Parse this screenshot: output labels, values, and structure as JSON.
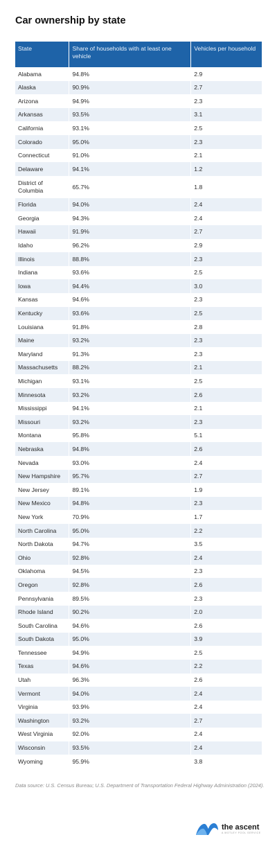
{
  "title": "Car ownership by state",
  "columns": [
    "State",
    "Share of households with at least one vehicle",
    "Vehicles per household"
  ],
  "rows": [
    [
      "Alabama",
      "94.8%",
      "2.9"
    ],
    [
      "Alaska",
      "90.9%",
      "2.7"
    ],
    [
      "Arizona",
      "94.9%",
      "2.3"
    ],
    [
      "Arkansas",
      "93.5%",
      "3.1"
    ],
    [
      "California",
      "93.1%",
      "2.5"
    ],
    [
      "Colorado",
      "95.0%",
      "2.3"
    ],
    [
      "Connecticut",
      "91.0%",
      "2.1"
    ],
    [
      "Delaware",
      "94.1%",
      "1.2"
    ],
    [
      "District of Columbia",
      "65.7%",
      "1.8"
    ],
    [
      "Florida",
      "94.0%",
      "2.4"
    ],
    [
      "Georgia",
      "94.3%",
      "2.4"
    ],
    [
      "Hawaii",
      "91.9%",
      "2.7"
    ],
    [
      "Idaho",
      "96.2%",
      "2.9"
    ],
    [
      "Illinois",
      "88.8%",
      "2.3"
    ],
    [
      "Indiana",
      "93.6%",
      "2.5"
    ],
    [
      "Iowa",
      "94.4%",
      "3.0"
    ],
    [
      "Kansas",
      "94.6%",
      "2.3"
    ],
    [
      "Kentucky",
      "93.6%",
      "2.5"
    ],
    [
      "Louisiana",
      "91.8%",
      "2.8"
    ],
    [
      "Maine",
      "93.2%",
      "2.3"
    ],
    [
      "Maryland",
      "91.3%",
      "2.3"
    ],
    [
      "Massachusetts",
      "88.2%",
      "2.1"
    ],
    [
      "Michigan",
      "93.1%",
      "2.5"
    ],
    [
      "Minnesota",
      "93.2%",
      "2.6"
    ],
    [
      "Mississippi",
      "94.1%",
      "2.1"
    ],
    [
      "Missouri",
      "93.2%",
      "2.3"
    ],
    [
      "Montana",
      "95.8%",
      "5.1"
    ],
    [
      "Nebraska",
      "94.8%",
      "2.6"
    ],
    [
      "Nevada",
      "93.0%",
      "2.4"
    ],
    [
      "New Hampshire",
      "95.7%",
      "2.7"
    ],
    [
      "New Jersey",
      "89.1%",
      "1.9"
    ],
    [
      "New Mexico",
      "94.8%",
      "2.3"
    ],
    [
      "New York",
      "70.9%",
      "1.7"
    ],
    [
      "North Carolina",
      "95.0%",
      "2.2"
    ],
    [
      "North Dakota",
      "94.7%",
      "3.5"
    ],
    [
      "Ohio",
      "92.8%",
      "2.4"
    ],
    [
      "Oklahoma",
      "94.5%",
      "2.3"
    ],
    [
      "Oregon",
      "92.8%",
      "2.6"
    ],
    [
      "Pennsylvania",
      "89.5%",
      "2.3"
    ],
    [
      "Rhode Island",
      "90.2%",
      "2.0"
    ],
    [
      "South Carolina",
      "94.6%",
      "2.6"
    ],
    [
      "South Dakota",
      "95.0%",
      "3.9"
    ],
    [
      "Tennessee",
      "94.9%",
      "2.5"
    ],
    [
      "Texas",
      "94.6%",
      "2.2"
    ],
    [
      "Utah",
      "96.3%",
      "2.6"
    ],
    [
      "Vermont",
      "94.0%",
      "2.4"
    ],
    [
      "Virginia",
      "93.9%",
      "2.4"
    ],
    [
      "Washington",
      "93.2%",
      "2.7"
    ],
    [
      "West Virginia",
      "92.0%",
      "2.4"
    ],
    [
      "Wisconsin",
      "93.5%",
      "2.4"
    ],
    [
      "Wyoming",
      "95.9%",
      "3.8"
    ]
  ],
  "source": "Data source: U.S. Census Bureau; U.S. Department of Transportation Federal Highway Administration (2024).",
  "logo": {
    "name": "the ascent",
    "tagline": "A MOTLEY FOOL SERVICE",
    "icon": "ascent-wave-logo-icon"
  },
  "colors": {
    "header_bg": "#1e63a8",
    "stripe": "#eaf0f7",
    "logo": "#2b7fd4"
  }
}
